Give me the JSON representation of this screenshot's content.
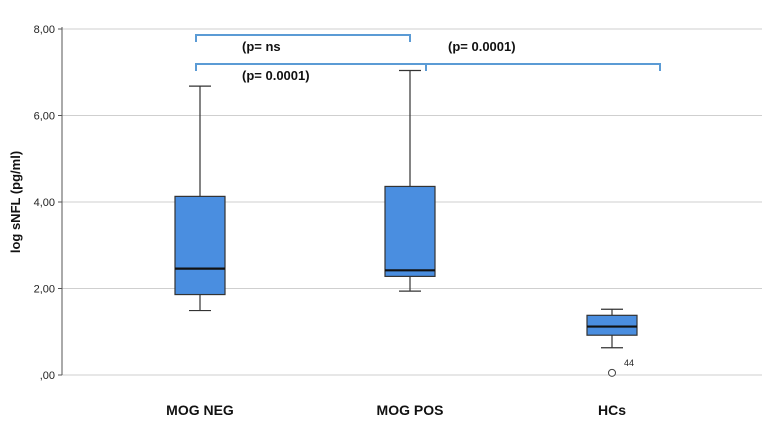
{
  "chart_data": {
    "type": "box",
    "ylabel": "log sNFL (pg/ml)",
    "ylim": [
      0,
      8
    ],
    "yticks": [
      {
        "value": 0,
        "label": ",00"
      },
      {
        "value": 2,
        "label": "2,00"
      },
      {
        "value": 4,
        "label": "4,00"
      },
      {
        "value": 6,
        "label": "6,00"
      },
      {
        "value": 8,
        "label": "8,00"
      }
    ],
    "grid": "horizontal",
    "box_color": "#4a8ee0",
    "bracket_color": "#5b9bd5",
    "categories": [
      "MOG NEG",
      "MOG POS",
      "HCs"
    ],
    "boxes": [
      {
        "category": "MOG NEG",
        "min": 1.49,
        "q1": 1.86,
        "median": 2.46,
        "q3": 4.13,
        "max": 6.68
      },
      {
        "category": "MOG POS",
        "min": 1.94,
        "q1": 2.28,
        "median": 2.42,
        "q3": 4.36,
        "max": 7.04
      },
      {
        "category": "HCs",
        "min": 0.63,
        "q1": 0.92,
        "median": 1.12,
        "q3": 1.38,
        "max": 1.52
      }
    ],
    "outliers": [
      {
        "category": "HCs",
        "value": 0.05,
        "label": "44"
      }
    ],
    "comparisons": [
      {
        "from": "MOG NEG",
        "to": "MOG POS",
        "label": "(p= ns"
      },
      {
        "from": "MOG POS",
        "to": "HCs",
        "label": "(p= 0.0001)"
      },
      {
        "from": "MOG NEG",
        "to": "HCs",
        "label": "(p= 0.0001)"
      }
    ]
  }
}
